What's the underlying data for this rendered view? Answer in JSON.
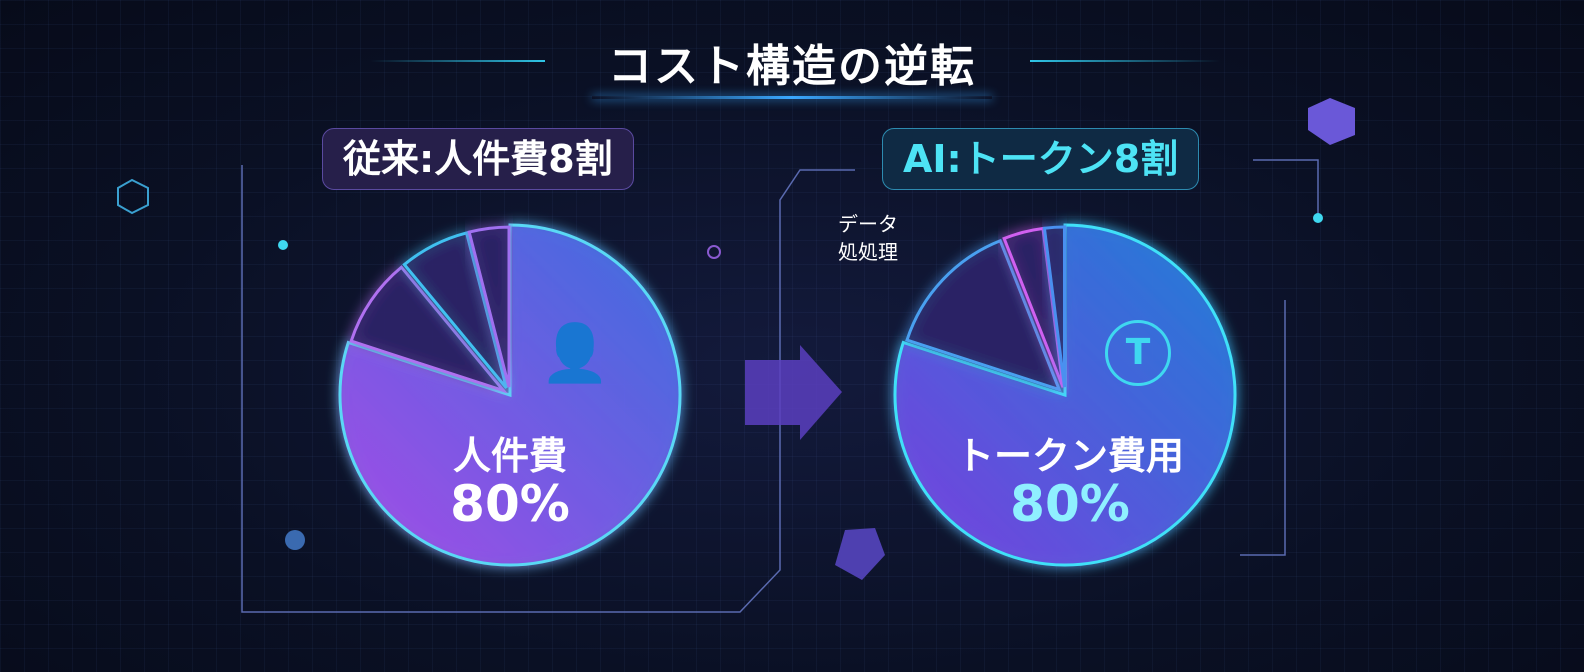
{
  "title": "コスト構造の逆転",
  "left_panel": {
    "label": "従来:人件費8割",
    "center_label": "人件費",
    "center_value": "80%",
    "icon": "person-dollar-icon"
  },
  "right_panel": {
    "label": "AI:トークン8割",
    "center_label": "トークン費用",
    "center_value": "80%",
    "side_label_1": "データ",
    "side_label_2": "処処理",
    "icon": "token-chip-icon",
    "slice_icon": "database-gear-icon"
  },
  "colors": {
    "cyan": "#3fd8f0",
    "purple": "#b35cf0",
    "blue": "#4a7df0",
    "background": "#0a1024"
  },
  "chart_data": [
    {
      "type": "pie",
      "title": "従来:人件費8割",
      "values": [
        80,
        9,
        7,
        4
      ],
      "labels": [
        "人件費",
        "",
        "",
        ""
      ]
    },
    {
      "type": "pie",
      "title": "AI:トークン8割",
      "values": [
        80,
        14,
        4,
        2
      ],
      "labels": [
        "トークン費用",
        "データ処処理",
        "",
        ""
      ]
    }
  ]
}
